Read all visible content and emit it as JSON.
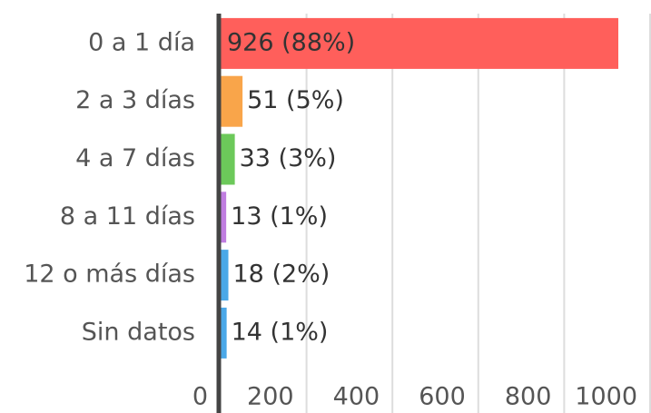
{
  "chart_data": {
    "type": "hbar",
    "categories": [
      "0 a 1 día",
      "2 a 3 días",
      "4 a 7 días",
      "8 a 11 días",
      "12 o más días",
      "Sin datos"
    ],
    "values": [
      926,
      51,
      33,
      13,
      18,
      14
    ],
    "value_labels": [
      "926 (88%)",
      "51 (5%)",
      "33 (3%)",
      "13 (1%)",
      "18 (2%)",
      "14 (1%)"
    ],
    "colors": [
      "#ff5f5b",
      "#f9a54a",
      "#6cc95a",
      "#c07de0",
      "#4aa8e8",
      "#4aa8e8"
    ],
    "xlim": [
      0,
      1000
    ],
    "xticks": [
      0,
      200,
      400,
      600,
      800,
      1000
    ],
    "grid": true
  }
}
